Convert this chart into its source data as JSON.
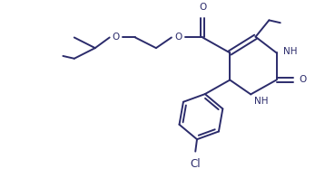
{
  "bg_color": "#ffffff",
  "line_color": "#2b2b6b",
  "line_width": 1.4,
  "font_size": 7.5,
  "figsize": [
    3.58,
    1.97
  ],
  "dpi": 100,
  "xlim": [
    0,
    10
  ],
  "ylim": [
    0,
    5.5
  ]
}
